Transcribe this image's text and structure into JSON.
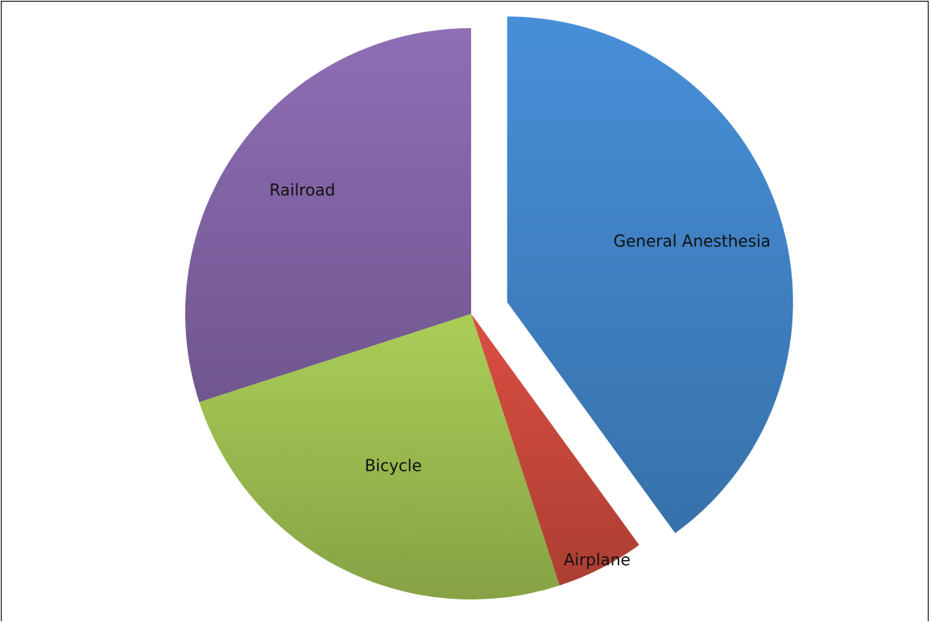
{
  "chart_data": {
    "type": "pie",
    "title": "",
    "start_angle_deg": 0,
    "direction": "clockwise",
    "exploded": [
      "General Anesthesia"
    ],
    "legend": "none",
    "slices": [
      {
        "label": "General Anesthesia",
        "value": 40,
        "color": "#3f80c1"
      },
      {
        "label": "Airplane",
        "value": 5,
        "color": "#c3463a"
      },
      {
        "label": "Bicycle",
        "value": 25,
        "color": "#98b84e"
      },
      {
        "label": "Railroad",
        "value": 30,
        "color": "#7f62a2"
      }
    ]
  }
}
